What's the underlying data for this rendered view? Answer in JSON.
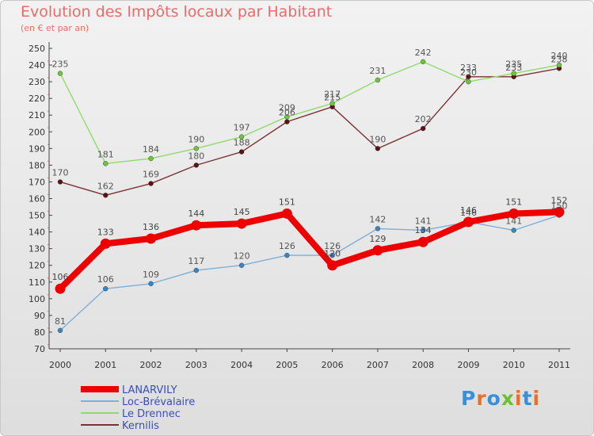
{
  "title": "Evolution des Impôts locaux par Habitant",
  "subtitle": "(en € et par an)",
  "logo": {
    "text": "Proxiti",
    "colors": [
      "#3b8fd6",
      "#e8702a",
      "#3b8fd6",
      "#6cbf2f",
      "#e8702a",
      "#3b8fd6",
      "#e8702a"
    ]
  },
  "chart_data": {
    "type": "line",
    "x": [
      2000,
      2001,
      2002,
      2003,
      2004,
      2005,
      2006,
      2007,
      2008,
      2009,
      2010,
      2011
    ],
    "ylim": [
      70,
      250
    ],
    "ystep": 10,
    "grid": false,
    "legend_position": "bottom-left",
    "series": [
      {
        "name": "LANARVILY",
        "color": "#ee0000",
        "marker": "#ee0000",
        "thick": true,
        "values": [
          106,
          133,
          136,
          144,
          145,
          151,
          120,
          129,
          134,
          146,
          151,
          152
        ],
        "labels": [
          "106",
          "133",
          "136",
          "144",
          "145",
          "151",
          "120",
          "129",
          "134",
          "146",
          "151",
          "152"
        ]
      },
      {
        "name": "Loc-Brévalaire",
        "color": "#7faed8",
        "marker": "#3a84c4",
        "thick": false,
        "values": [
          81,
          106,
          109,
          117,
          120,
          126,
          126,
          142,
          141,
          146,
          141,
          150
        ],
        "labels": [
          "81",
          "106",
          "109",
          "117",
          "120",
          "126",
          "126",
          "142",
          "141",
          "146",
          "141",
          "150"
        ]
      },
      {
        "name": "Le Drennec",
        "color": "#8fdc6a",
        "marker": "#6cc43a",
        "thick": false,
        "values": [
          235,
          181,
          184,
          190,
          197,
          209,
          217,
          231,
          242,
          230,
          235,
          240
        ],
        "labels": [
          "235",
          "181",
          "184",
          "190",
          "197",
          "209",
          "217",
          "231",
          "242",
          "230",
          "235",
          "240"
        ]
      },
      {
        "name": "Kernilis",
        "color": "#7a3434",
        "marker": "#5a1414",
        "thick": false,
        "values": [
          170,
          162,
          169,
          180,
          188,
          206,
          215,
          190,
          202,
          233,
          233,
          238
        ],
        "labels": [
          "170",
          "162",
          "169",
          "180",
          "188",
          "206",
          "215",
          "190",
          "202",
          "233",
          "233",
          "238"
        ]
      }
    ]
  }
}
